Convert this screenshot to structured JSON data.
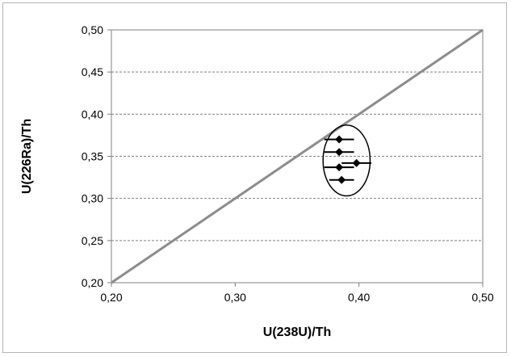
{
  "chart_data": {
    "type": "scatter",
    "xlabel": "U(238U)/Th",
    "ylabel": "U(226Ra)/Th",
    "xlim": [
      0.2,
      0.5
    ],
    "ylim": [
      0.2,
      0.5
    ],
    "x_ticks": [
      "0,20",
      "0,30",
      "0,40",
      "0,50"
    ],
    "y_ticks": [
      "0,20",
      "0,25",
      "0,30",
      "0,35",
      "0,40",
      "0,45",
      "0,50"
    ],
    "grid": "horizontal dashed",
    "legend": "none",
    "equiline": {
      "x": [
        0.2,
        0.5
      ],
      "y": [
        0.2,
        0.5
      ],
      "color": "#8c8c8c"
    },
    "points": [
      {
        "x": 0.384,
        "y": 0.37,
        "xerr": 0.012
      },
      {
        "x": 0.384,
        "y": 0.355,
        "xerr": 0.012
      },
      {
        "x": 0.398,
        "y": 0.342,
        "xerr": 0.012
      },
      {
        "x": 0.384,
        "y": 0.337,
        "xerr": 0.012
      },
      {
        "x": 0.386,
        "y": 0.322,
        "xerr": 0.01
      }
    ],
    "ellipse": {
      "cx": 0.39,
      "cy": 0.345,
      "rx": 0.019,
      "ry": 0.042
    },
    "colors": {
      "points": "#000000",
      "line": "#8c8c8c",
      "grid": "#808080"
    }
  }
}
